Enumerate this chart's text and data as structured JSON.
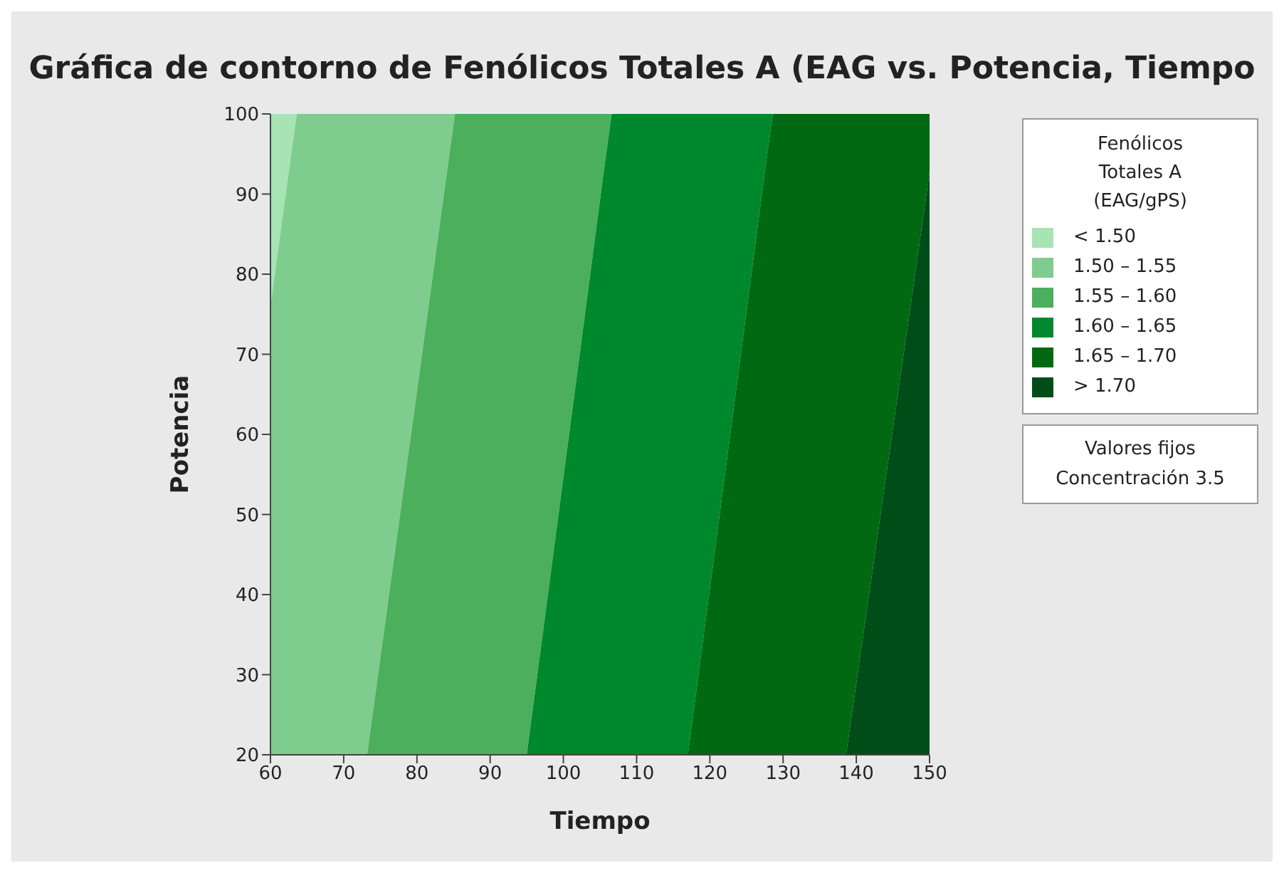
{
  "chart_data": {
    "type": "area",
    "orientation": "horizontal",
    "title": "Gráfica de contorno de Fenólicos Totales A (EAG vs. Potencia, Tiempo",
    "xlabel": "Tiempo",
    "ylabel": "Potencia",
    "legend_title": "Fenólicos Totales A (EAG/gPS)",
    "legend": "right",
    "xlim": [
      60,
      150
    ],
    "xticks": [
      60,
      70,
      80,
      90,
      100,
      110,
      120,
      130,
      140,
      150
    ],
    "ylim": [
      20,
      100
    ],
    "yticks": [
      20,
      30,
      40,
      50,
      60,
      70,
      80,
      90,
      100
    ],
    "x": [
      20,
      76,
      92.7,
      100
    ],
    "series": [
      {
        "name": "< 1.50",
        "color": "#a6e4b4",
        "values": [
          60,
          60,
          62.5,
          63.6
        ]
      },
      {
        "name": "1.50 – 1.55",
        "color": "#7fcd8e",
        "values": [
          73.2,
          81.6,
          84.1,
          85.2
        ]
      },
      {
        "name": "1.55 – 1.60",
        "color": "#4caf5c",
        "values": [
          95,
          103.1,
          105.5,
          106.6
        ]
      },
      {
        "name": "1.60 – 1.65",
        "color": "#00882c",
        "values": [
          117,
          125.1,
          127.5,
          128.6
        ]
      },
      {
        "name": "1.65 – 1.70",
        "color": "#006912",
        "values": [
          138.6,
          147.4,
          150,
          150
        ]
      },
      {
        "name": "> 1.70",
        "color": "#004d18",
        "values": [
          150,
          150,
          150,
          150
        ]
      }
    ],
    "annotations": [
      "Valores fijos",
      "Concentración 3.5"
    ]
  }
}
